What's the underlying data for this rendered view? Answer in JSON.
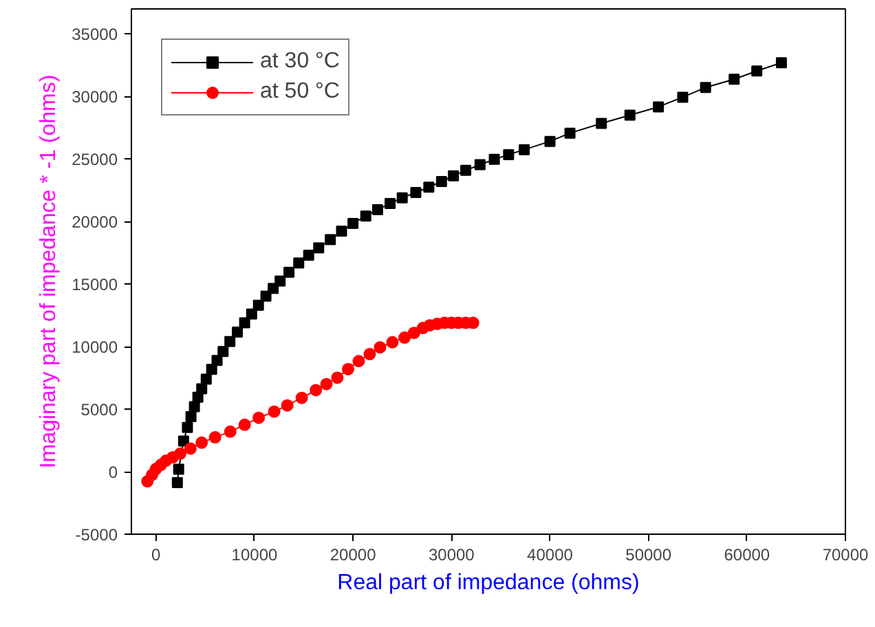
{
  "chart_data": {
    "type": "line",
    "xlabel": "Real part of impedance (ohms)",
    "ylabel": "Imaginary part of impedance * -1 (ohms)",
    "xlim": [
      -2500,
      70000
    ],
    "ylim": [
      -5000,
      37000
    ],
    "xticks": [
      0,
      10000,
      20000,
      30000,
      40000,
      50000,
      60000,
      70000
    ],
    "yticks": [
      -5000,
      0,
      5000,
      10000,
      15000,
      20000,
      25000,
      30000,
      35000
    ],
    "grid": false,
    "legend": "top left",
    "series": [
      {
        "name": "at 30 °C",
        "color": "#000000",
        "marker": "square",
        "x": [
          2170,
          2300,
          2800,
          3190,
          3550,
          3900,
          4250,
          4640,
          5100,
          5650,
          6200,
          6810,
          7500,
          8260,
          9000,
          9710,
          10400,
          11160,
          11900,
          12600,
          13500,
          14490,
          15500,
          16520,
          17700,
          18840,
          20000,
          21300,
          22500,
          23770,
          25000,
          26380,
          27700,
          28990,
          30200,
          31450,
          32900,
          34350,
          35800,
          37390,
          40000,
          42030,
          45220,
          48120,
          51010,
          53480,
          55800,
          58700,
          61000,
          63500
        ],
        "values": [
          -880,
          200,
          2450,
          3540,
          4400,
          5200,
          5950,
          6630,
          7400,
          8180,
          8900,
          9610,
          10400,
          11160,
          11900,
          12600,
          13300,
          14030,
          14650,
          15250,
          15950,
          16690,
          17300,
          17900,
          18550,
          19230,
          19850,
          20440,
          20950,
          21440,
          21900,
          22320,
          22750,
          23200,
          23650,
          24090,
          24550,
          24970,
          25350,
          25750,
          26410,
          27070,
          27850,
          28510,
          29170,
          29940,
          30720,
          31380,
          32040,
          32700
        ]
      },
      {
        "name": "at 50 °C",
        "color": "#ff0000",
        "marker": "circle",
        "x": [
          -870,
          -400,
          0,
          500,
          1010,
          1700,
          2460,
          3500,
          4640,
          6000,
          7540,
          9000,
          10430,
          12000,
          13330,
          14800,
          16230,
          17300,
          18410,
          19500,
          20580,
          21700,
          22750,
          24000,
          25240,
          26200,
          27100,
          27800,
          28550,
          29300,
          30000,
          30700,
          31450,
          32200
        ],
        "values": [
          -770,
          -250,
          220,
          550,
          880,
          1150,
          1440,
          1850,
          2320,
          2750,
          3200,
          3750,
          4310,
          4800,
          5300,
          5900,
          6520,
          7000,
          7510,
          8200,
          8840,
          9400,
          9940,
          10350,
          10720,
          11100,
          11490,
          11700,
          11820,
          11900,
          11900,
          11900,
          11900,
          11900
        ]
      }
    ]
  }
}
